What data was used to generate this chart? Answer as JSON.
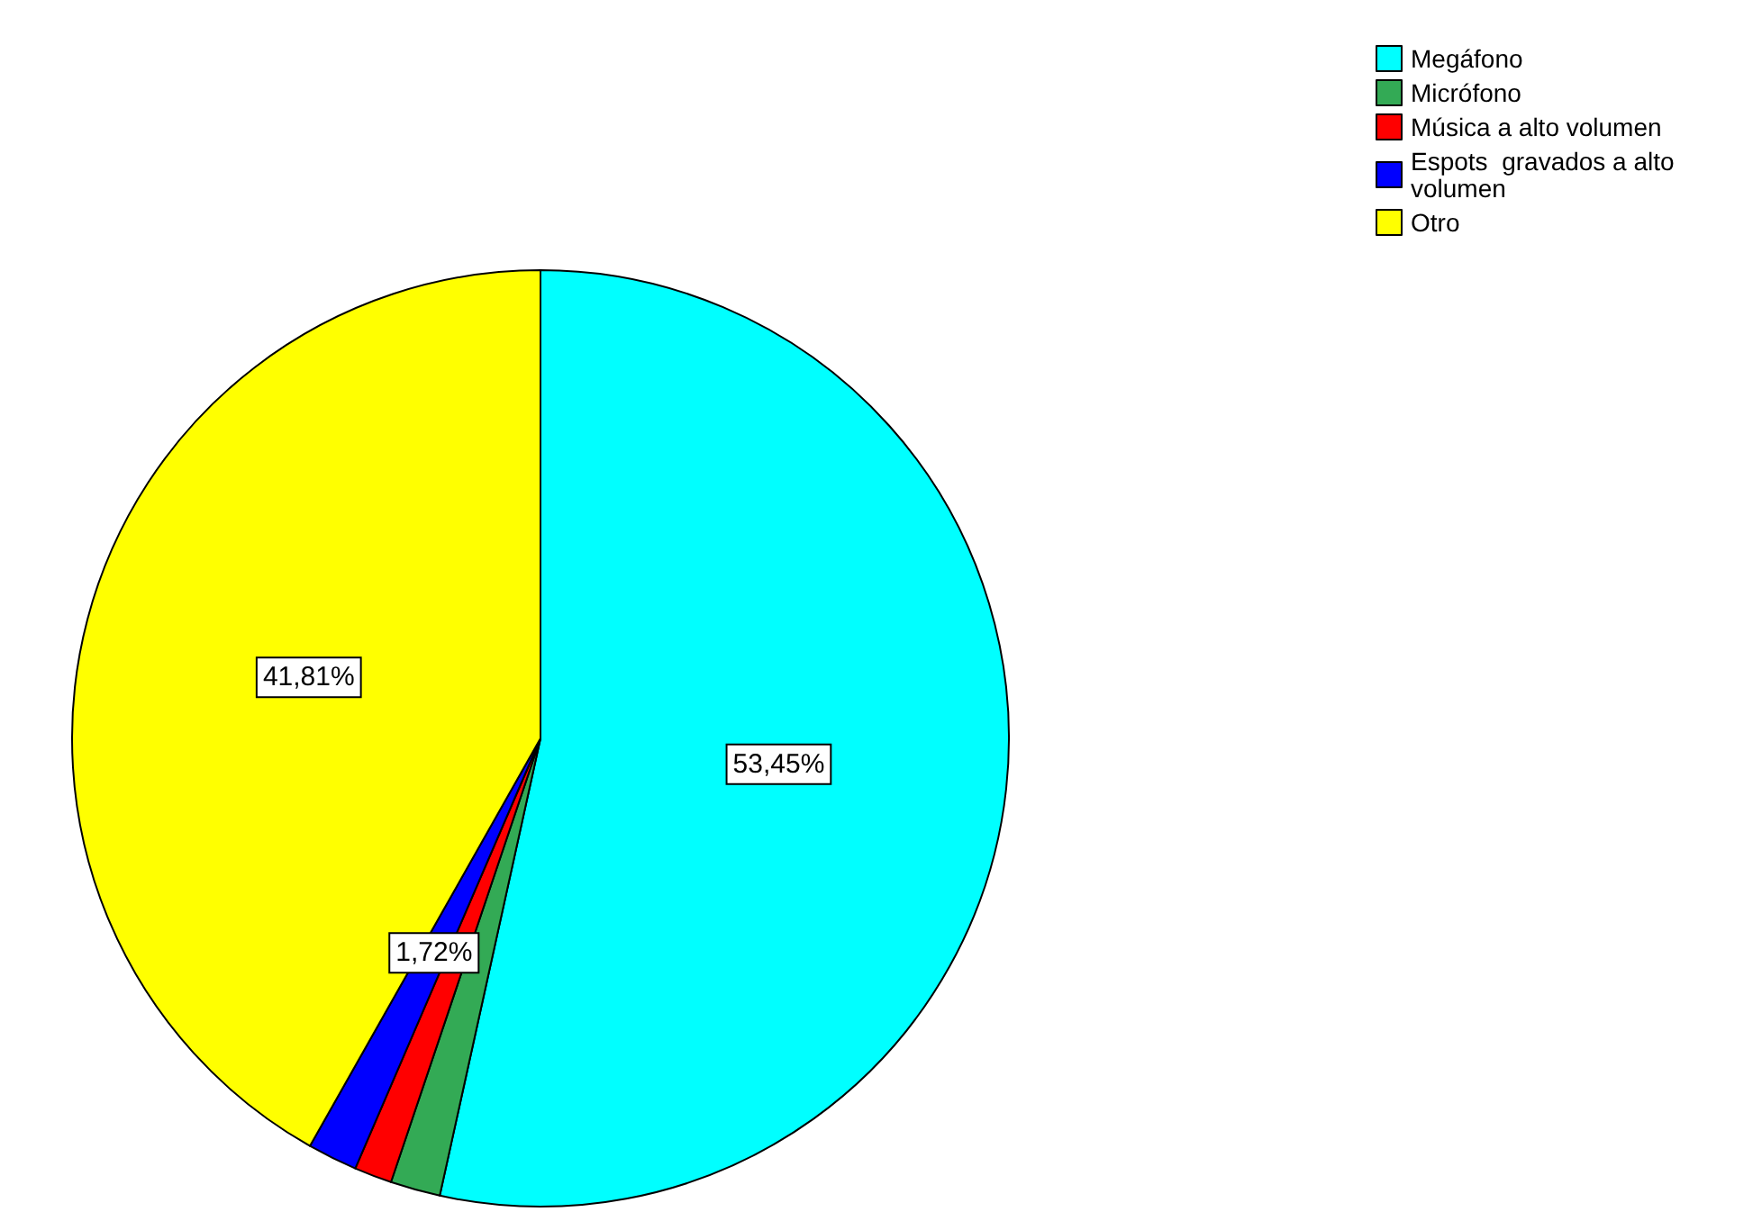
{
  "chart_data": {
    "type": "pie",
    "categories": [
      "Megáfono",
      "Micrófono",
      "Música a alto volumen",
      "Espots  gravados a alto volumen",
      "Otro"
    ],
    "values": [
      53.45,
      1.72,
      1.3,
      1.72,
      41.81
    ],
    "colors": [
      "#00ffff",
      "#33aa55",
      "#ff0000",
      "#0000ff",
      "#ffff00"
    ],
    "value_labels": [
      "53,45%",
      null,
      null,
      "1,72%",
      "41,81%"
    ],
    "legend": "top right"
  }
}
